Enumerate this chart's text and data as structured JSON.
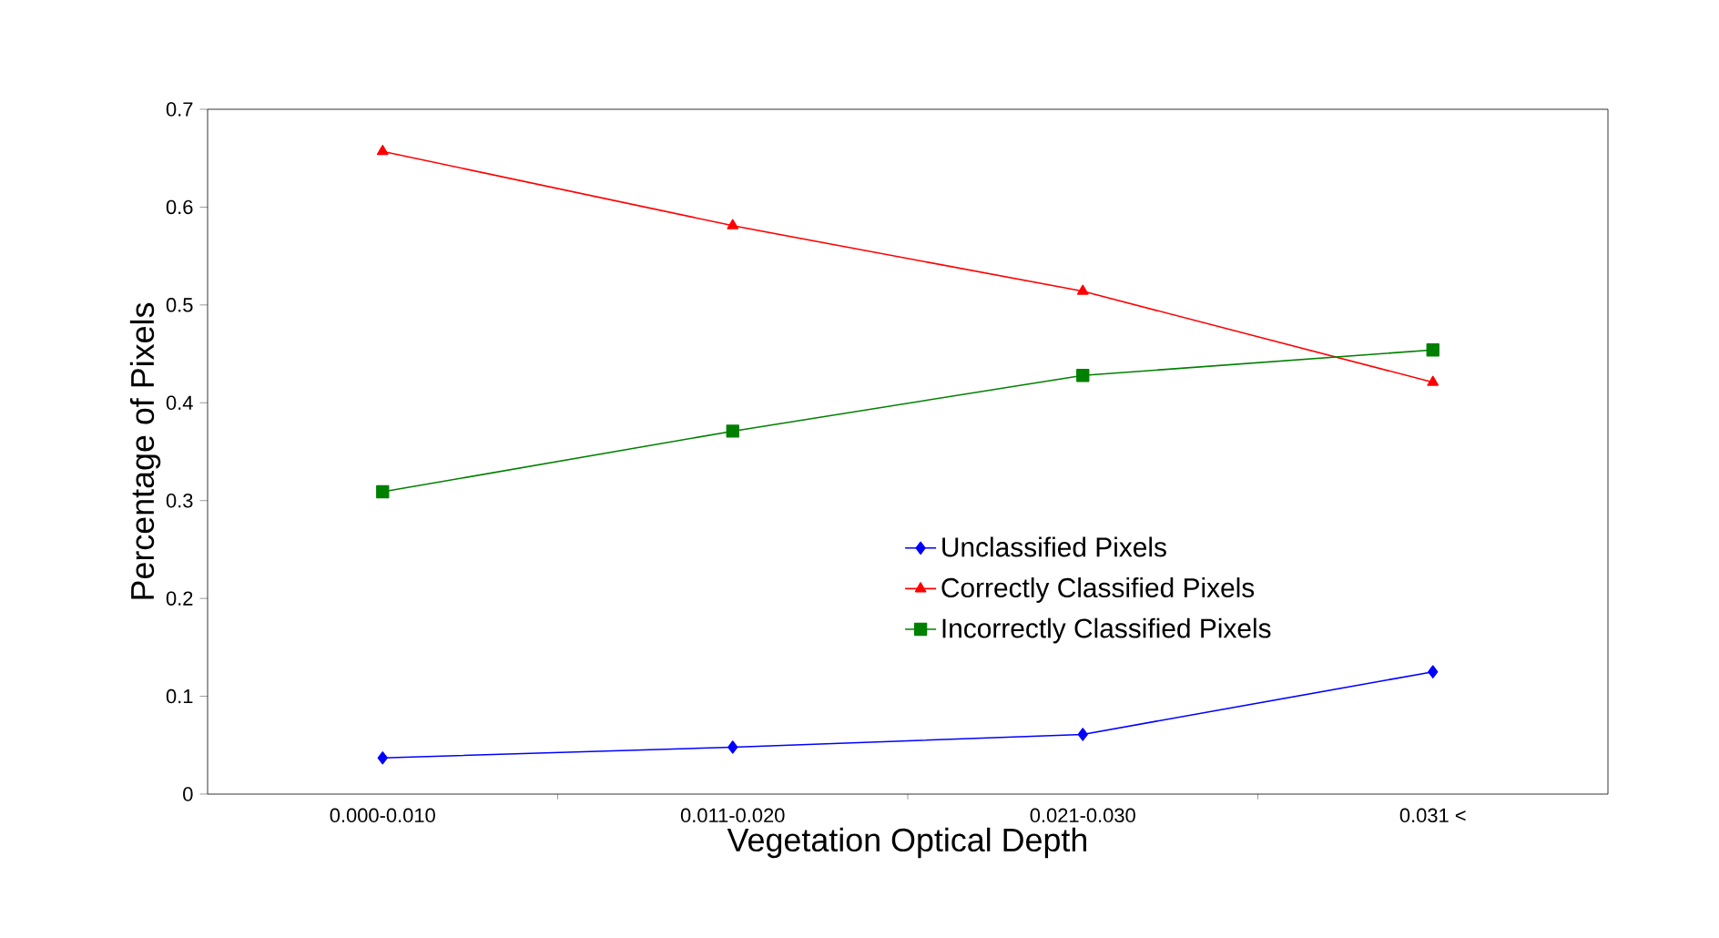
{
  "chart_data": {
    "type": "line",
    "xlabel": "Vegetation Optical Depth",
    "ylabel": "Percentage of Pixels",
    "categories": [
      "0.000-0.010",
      "0.011-0.020",
      "0.021-0.030",
      "0.031 <"
    ],
    "series": [
      {
        "name": "Unclassified Pixels",
        "color": "#0000ff",
        "marker": "diamond",
        "values": [
          0.037,
          0.048,
          0.061,
          0.125
        ]
      },
      {
        "name": "Correctly Classified Pixels",
        "color": "#ff0000",
        "marker": "triangle",
        "values": [
          0.657,
          0.581,
          0.514,
          0.421
        ]
      },
      {
        "name": "Incorrectly Classified Pixels",
        "color": "#008000",
        "marker": "square",
        "values": [
          0.309,
          0.371,
          0.428,
          0.454
        ]
      }
    ],
    "ylim": [
      0,
      0.7
    ],
    "yticks": [
      0,
      0.1,
      0.2,
      0.3,
      0.4,
      0.5,
      0.6,
      0.7
    ],
    "grid": false,
    "legend": "center"
  }
}
